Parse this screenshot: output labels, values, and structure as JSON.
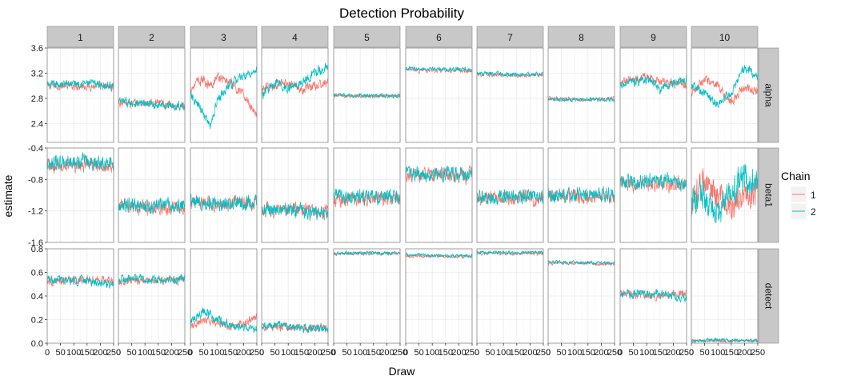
{
  "chart_data": {
    "type": "line",
    "layout": "facet-grid",
    "title": "Detection Probability",
    "xlabel": "Draw",
    "ylabel": "estimate",
    "x_ticks": [
      0,
      50,
      100,
      150,
      200,
      250
    ],
    "x_range": [
      0,
      250
    ],
    "x_tick_labels": [
      "0",
      "50",
      "100",
      "150",
      "200",
      "250"
    ],
    "facet_columns": [
      "1",
      "2",
      "3",
      "4",
      "5",
      "6",
      "7",
      "8",
      "9",
      "10"
    ],
    "facet_rows": [
      "alpha",
      "beta1",
      "detect"
    ],
    "row_axes": [
      {
        "ylim": [
          2.1,
          3.6
        ],
        "ticks": [
          2.4,
          2.8,
          3.2,
          3.6
        ],
        "tick_labels": [
          "2.4",
          "2.8",
          "3.2",
          "3.6"
        ]
      },
      {
        "ylim": [
          -1.6,
          -0.4
        ],
        "ticks": [
          -1.6,
          -1.2,
          -0.8,
          -0.4
        ],
        "tick_labels": [
          "-1.6",
          "-1.2",
          "-0.8",
          "-0.4"
        ]
      },
      {
        "ylim": [
          0.0,
          0.8
        ],
        "ticks": [
          0.0,
          0.2,
          0.4,
          0.6,
          0.8
        ],
        "tick_labels": [
          "0.0",
          "0.2",
          "0.4",
          "0.6",
          "0.8"
        ]
      }
    ],
    "legend": {
      "title": "Chain",
      "position": "right",
      "entries": [
        "1",
        "2"
      ]
    },
    "colors": {
      "chain_1": "#F8766D",
      "chain_2": "#00BFC4",
      "strip_fill": "#C8C8C8",
      "grid": "#EBEBEB",
      "panel_border": "#888888"
    },
    "series": [
      {
        "name": "1",
        "row": "alpha",
        "col": "1",
        "x": [
          0,
          125,
          250
        ],
        "y": [
          3.0,
          3.0,
          2.98
        ]
      },
      {
        "name": "2",
        "row": "alpha",
        "col": "1",
        "x": [
          0,
          125,
          250
        ],
        "y": [
          3.0,
          3.05,
          3.0
        ]
      },
      {
        "name": "1",
        "row": "alpha",
        "col": "2",
        "x": [
          0,
          125,
          250
        ],
        "y": [
          2.72,
          2.72,
          2.68
        ]
      },
      {
        "name": "2",
        "row": "alpha",
        "col": "2",
        "x": [
          0,
          125,
          250
        ],
        "y": [
          2.75,
          2.7,
          2.68
        ]
      },
      {
        "name": "1",
        "row": "alpha",
        "col": "3",
        "x": [
          0,
          25,
          50,
          75,
          100,
          125,
          150,
          175,
          200,
          225,
          250
        ],
        "y": [
          2.95,
          3.05,
          3.1,
          3.0,
          3.15,
          3.1,
          3.05,
          2.95,
          2.85,
          2.7,
          2.55
        ]
      },
      {
        "name": "2",
        "row": "alpha",
        "col": "3",
        "x": [
          0,
          25,
          50,
          75,
          100,
          125,
          150,
          175,
          200,
          225,
          250
        ],
        "y": [
          2.85,
          2.7,
          2.55,
          2.35,
          2.75,
          2.9,
          3.0,
          3.1,
          3.15,
          3.2,
          3.25
        ]
      },
      {
        "name": "1",
        "row": "alpha",
        "col": "4",
        "x": [
          0,
          50,
          100,
          150,
          200,
          250
        ],
        "y": [
          2.95,
          3.0,
          3.05,
          2.95,
          3.0,
          3.05
        ]
      },
      {
        "name": "2",
        "row": "alpha",
        "col": "4",
        "x": [
          0,
          50,
          100,
          150,
          200,
          250
        ],
        "y": [
          2.85,
          3.05,
          2.95,
          3.05,
          3.2,
          3.3
        ]
      },
      {
        "name": "1",
        "row": "alpha",
        "col": "5",
        "x": [
          0,
          125,
          250
        ],
        "y": [
          2.84,
          2.84,
          2.84
        ]
      },
      {
        "name": "2",
        "row": "alpha",
        "col": "5",
        "x": [
          0,
          125,
          250
        ],
        "y": [
          2.85,
          2.84,
          2.85
        ]
      },
      {
        "name": "1",
        "row": "alpha",
        "col": "6",
        "x": [
          0,
          125,
          250
        ],
        "y": [
          3.25,
          3.24,
          3.24
        ]
      },
      {
        "name": "2",
        "row": "alpha",
        "col": "6",
        "x": [
          0,
          125,
          250
        ],
        "y": [
          3.28,
          3.26,
          3.26
        ]
      },
      {
        "name": "1",
        "row": "alpha",
        "col": "7",
        "x": [
          0,
          125,
          250
        ],
        "y": [
          3.18,
          3.17,
          3.17
        ]
      },
      {
        "name": "2",
        "row": "alpha",
        "col": "7",
        "x": [
          0,
          125,
          250
        ],
        "y": [
          3.2,
          3.18,
          3.18
        ]
      },
      {
        "name": "1",
        "row": "alpha",
        "col": "8",
        "x": [
          0,
          125,
          250
        ],
        "y": [
          2.8,
          2.78,
          2.8
        ]
      },
      {
        "name": "2",
        "row": "alpha",
        "col": "8",
        "x": [
          0,
          125,
          250
        ],
        "y": [
          2.78,
          2.78,
          2.78
        ]
      },
      {
        "name": "1",
        "row": "alpha",
        "col": "9",
        "x": [
          0,
          50,
          100,
          150,
          200,
          250
        ],
        "y": [
          3.05,
          3.1,
          3.15,
          3.05,
          3.05,
          3.0
        ]
      },
      {
        "name": "2",
        "row": "alpha",
        "col": "9",
        "x": [
          0,
          50,
          100,
          150,
          200,
          250
        ],
        "y": [
          3.0,
          3.05,
          3.1,
          2.95,
          3.05,
          3.1
        ]
      },
      {
        "name": "1",
        "row": "alpha",
        "col": "10",
        "x": [
          0,
          50,
          100,
          150,
          200,
          250
        ],
        "y": [
          2.9,
          3.1,
          3.0,
          2.75,
          2.95,
          2.9
        ]
      },
      {
        "name": "2",
        "row": "alpha",
        "col": "10",
        "x": [
          0,
          50,
          100,
          150,
          200,
          250
        ],
        "y": [
          3.0,
          2.9,
          2.7,
          2.9,
          3.3,
          3.15
        ]
      },
      {
        "name": "1",
        "row": "beta1",
        "col": "1",
        "x": [
          0,
          125,
          250
        ],
        "y": [
          -0.62,
          -0.6,
          -0.62
        ]
      },
      {
        "name": "2",
        "row": "beta1",
        "col": "1",
        "x": [
          0,
          125,
          250
        ],
        "y": [
          -0.6,
          -0.58,
          -0.58
        ]
      },
      {
        "name": "1",
        "row": "beta1",
        "col": "2",
        "x": [
          0,
          125,
          250
        ],
        "y": [
          -1.15,
          -1.15,
          -1.15
        ]
      },
      {
        "name": "2",
        "row": "beta1",
        "col": "2",
        "x": [
          0,
          125,
          250
        ],
        "y": [
          -1.12,
          -1.14,
          -1.12
        ]
      },
      {
        "name": "1",
        "row": "beta1",
        "col": "3",
        "x": [
          0,
          125,
          250
        ],
        "y": [
          -1.1,
          -1.12,
          -1.1
        ]
      },
      {
        "name": "2",
        "row": "beta1",
        "col": "3",
        "x": [
          0,
          125,
          250
        ],
        "y": [
          -1.08,
          -1.1,
          -1.08
        ]
      },
      {
        "name": "1",
        "row": "beta1",
        "col": "4",
        "x": [
          0,
          125,
          250
        ],
        "y": [
          -1.18,
          -1.18,
          -1.2
        ]
      },
      {
        "name": "2",
        "row": "beta1",
        "col": "4",
        "x": [
          0,
          125,
          250
        ],
        "y": [
          -1.2,
          -1.2,
          -1.22
        ]
      },
      {
        "name": "1",
        "row": "beta1",
        "col": "5",
        "x": [
          0,
          125,
          250
        ],
        "y": [
          -1.05,
          -1.04,
          -1.04
        ]
      },
      {
        "name": "2",
        "row": "beta1",
        "col": "5",
        "x": [
          0,
          125,
          250
        ],
        "y": [
          -1.02,
          -1.02,
          -1.02
        ]
      },
      {
        "name": "1",
        "row": "beta1",
        "col": "6",
        "x": [
          0,
          125,
          250
        ],
        "y": [
          -0.76,
          -0.74,
          -0.75
        ]
      },
      {
        "name": "2",
        "row": "beta1",
        "col": "6",
        "x": [
          0,
          125,
          250
        ],
        "y": [
          -0.74,
          -0.73,
          -0.72
        ]
      },
      {
        "name": "1",
        "row": "beta1",
        "col": "7",
        "x": [
          0,
          125,
          250
        ],
        "y": [
          -1.04,
          -1.04,
          -1.04
        ]
      },
      {
        "name": "2",
        "row": "beta1",
        "col": "7",
        "x": [
          0,
          125,
          250
        ],
        "y": [
          -1.02,
          -1.02,
          -1.02
        ]
      },
      {
        "name": "1",
        "row": "beta1",
        "col": "8",
        "x": [
          0,
          125,
          250
        ],
        "y": [
          -1.02,
          -1.02,
          -1.02
        ]
      },
      {
        "name": "2",
        "row": "beta1",
        "col": "8",
        "x": [
          0,
          125,
          250
        ],
        "y": [
          -1.0,
          -1.0,
          -1.0
        ]
      },
      {
        "name": "1",
        "row": "beta1",
        "col": "9",
        "x": [
          0,
          125,
          250
        ],
        "y": [
          -0.86,
          -0.86,
          -0.86
        ]
      },
      {
        "name": "2",
        "row": "beta1",
        "col": "9",
        "x": [
          0,
          125,
          250
        ],
        "y": [
          -0.84,
          -0.82,
          -0.84
        ]
      },
      {
        "name": "1",
        "row": "beta1",
        "col": "10",
        "x": [
          0,
          50,
          100,
          150,
          200,
          250
        ],
        "y": [
          -1.1,
          -0.8,
          -1.0,
          -1.15,
          -0.95,
          -1.0
        ]
      },
      {
        "name": "2",
        "row": "beta1",
        "col": "10",
        "x": [
          0,
          50,
          100,
          150,
          200,
          250
        ],
        "y": [
          -1.1,
          -1.0,
          -1.3,
          -0.9,
          -0.8,
          -0.85
        ]
      },
      {
        "name": "1",
        "row": "detect",
        "col": "1",
        "x": [
          0,
          125,
          250
        ],
        "y": [
          0.52,
          0.54,
          0.53
        ]
      },
      {
        "name": "2",
        "row": "detect",
        "col": "1",
        "x": [
          0,
          125,
          250
        ],
        "y": [
          0.54,
          0.53,
          0.5
        ]
      },
      {
        "name": "1",
        "row": "detect",
        "col": "2",
        "x": [
          0,
          125,
          250
        ],
        "y": [
          0.53,
          0.53,
          0.54
        ]
      },
      {
        "name": "2",
        "row": "detect",
        "col": "2",
        "x": [
          0,
          125,
          250
        ],
        "y": [
          0.55,
          0.54,
          0.54
        ]
      },
      {
        "name": "1",
        "row": "detect",
        "col": "3",
        "x": [
          0,
          50,
          100,
          150,
          200,
          250
        ],
        "y": [
          0.15,
          0.2,
          0.17,
          0.15,
          0.16,
          0.22
        ]
      },
      {
        "name": "2",
        "row": "detect",
        "col": "3",
        "x": [
          0,
          50,
          100,
          150,
          200,
          250
        ],
        "y": [
          0.18,
          0.27,
          0.2,
          0.15,
          0.13,
          0.12
        ]
      },
      {
        "name": "1",
        "row": "detect",
        "col": "4",
        "x": [
          0,
          125,
          250
        ],
        "y": [
          0.14,
          0.13,
          0.13
        ]
      },
      {
        "name": "2",
        "row": "detect",
        "col": "4",
        "x": [
          0,
          125,
          250
        ],
        "y": [
          0.15,
          0.14,
          0.12
        ]
      },
      {
        "name": "1",
        "row": "detect",
        "col": "5",
        "x": [
          0,
          125,
          250
        ],
        "y": [
          0.76,
          0.76,
          0.76
        ]
      },
      {
        "name": "2",
        "row": "detect",
        "col": "5",
        "x": [
          0,
          125,
          250
        ],
        "y": [
          0.76,
          0.77,
          0.76
        ]
      },
      {
        "name": "1",
        "row": "detect",
        "col": "6",
        "x": [
          0,
          125,
          250
        ],
        "y": [
          0.74,
          0.74,
          0.73
        ]
      },
      {
        "name": "2",
        "row": "detect",
        "col": "6",
        "x": [
          0,
          125,
          250
        ],
        "y": [
          0.75,
          0.74,
          0.74
        ]
      },
      {
        "name": "1",
        "row": "detect",
        "col": "7",
        "x": [
          0,
          125,
          250
        ],
        "y": [
          0.76,
          0.76,
          0.76
        ]
      },
      {
        "name": "2",
        "row": "detect",
        "col": "7",
        "x": [
          0,
          125,
          250
        ],
        "y": [
          0.77,
          0.77,
          0.77
        ]
      },
      {
        "name": "1",
        "row": "detect",
        "col": "8",
        "x": [
          0,
          125,
          250
        ],
        "y": [
          0.68,
          0.68,
          0.67
        ]
      },
      {
        "name": "2",
        "row": "detect",
        "col": "8",
        "x": [
          0,
          125,
          250
        ],
        "y": [
          0.69,
          0.68,
          0.68
        ]
      },
      {
        "name": "1",
        "row": "detect",
        "col": "9",
        "x": [
          0,
          125,
          250
        ],
        "y": [
          0.42,
          0.4,
          0.42
        ]
      },
      {
        "name": "2",
        "row": "detect",
        "col": "9",
        "x": [
          0,
          125,
          250
        ],
        "y": [
          0.41,
          0.42,
          0.38
        ]
      },
      {
        "name": "1",
        "row": "detect",
        "col": "10",
        "x": [
          0,
          125,
          250
        ],
        "y": [
          0.02,
          0.02,
          0.02
        ]
      },
      {
        "name": "2",
        "row": "detect",
        "col": "10",
        "x": [
          0,
          125,
          250
        ],
        "y": [
          0.02,
          0.025,
          0.02
        ]
      }
    ]
  }
}
